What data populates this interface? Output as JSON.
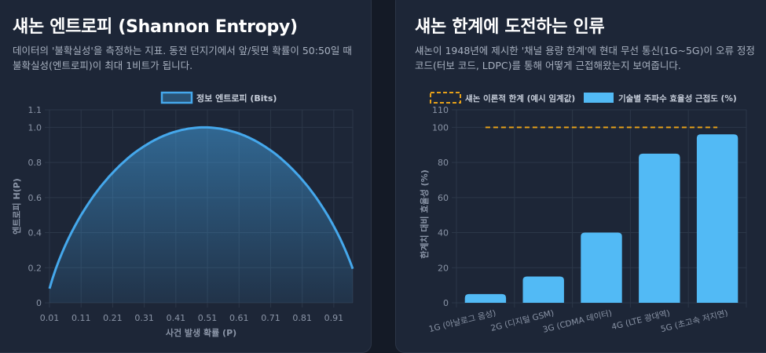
{
  "left_card": {
    "title": "섀논 엔트로피 (Shannon Entropy)",
    "description": "데이터의 '불확실성'을 측정하는 지표. 동전 던지기에서 앞/뒷면 확률이 50:50일 때 불확실성(엔트로피)이 최대 1비트가 됩니다."
  },
  "right_card": {
    "title": "섀논 한계에 도전하는 인류",
    "description": "섀논이 1948년에 제시한 '채널 용량 한계'에 현대 무선 통신(1G~5G)이 오류 정정 코드(터보 코드, LDPC)를 통해 어떻게 근접해왔는지 보여줍니다."
  },
  "colors": {
    "line": "#45a8ec",
    "bar": "#52baf5",
    "limit": "#e6a11a",
    "grid": "#2c3748",
    "tick_text": "#8a94a6"
  },
  "chart_data": [
    {
      "type": "area",
      "series": [
        {
          "name": "정보 엔트로피 (Bits)",
          "x_start": 0.01,
          "x_step": 0.01,
          "values": [
            0.081,
            0.141,
            0.194,
            0.242,
            0.286,
            0.327,
            0.366,
            0.402,
            0.436,
            0.469,
            0.5,
            0.529,
            0.557,
            0.584,
            0.61,
            0.634,
            0.658,
            0.68,
            0.701,
            0.722,
            0.741,
            0.76,
            0.778,
            0.795,
            0.811,
            0.827,
            0.842,
            0.856,
            0.869,
            0.881,
            0.893,
            0.904,
            0.915,
            0.925,
            0.934,
            0.943,
            0.951,
            0.958,
            0.965,
            0.971,
            0.976,
            0.981,
            0.986,
            0.989,
            0.993,
            0.995,
            0.997,
            0.999,
            1,
            1,
            1,
            0.999,
            0.997,
            0.995,
            0.993,
            0.989,
            0.986,
            0.981,
            0.976,
            0.971,
            0.965,
            0.958,
            0.951,
            0.943,
            0.934,
            0.925,
            0.915,
            0.904,
            0.893,
            0.881,
            0.869,
            0.856,
            0.842,
            0.827,
            0.811,
            0.795,
            0.778,
            0.76,
            0.741,
            0.722,
            0.701,
            0.68,
            0.658,
            0.634,
            0.61,
            0.584,
            0.557,
            0.529,
            0.5,
            0.469,
            0.436,
            0.402,
            0.366,
            0.327,
            0.286,
            0.242,
            0.194
          ]
        }
      ],
      "x_tick_labels": [
        "0.01",
        "0.11",
        "0.21",
        "0.31",
        "0.41",
        "0.51",
        "0.61",
        "0.71",
        "0.81",
        "0.91"
      ],
      "y_tick_labels": [
        "0",
        "0.2",
        "0.4",
        "0.6",
        "0.8",
        "1.0",
        "1.1"
      ],
      "xlabel": "사건 발생 확률 (P)",
      "ylabel": "엔트로피 H(P)",
      "ylim": [
        0,
        1.1
      ],
      "grid": true,
      "legend": "top-center"
    },
    {
      "type": "bar",
      "categories": [
        "1G (아날로그 음성)",
        "2G (디지털 GSM)",
        "3G (CDMA 데이터)",
        "4G (LTE 광대역)",
        "5G (초고속 저지연)"
      ],
      "series": [
        {
          "name": "기술별 주파수 효율성 근접도 (%)",
          "values": [
            5,
            15,
            40,
            85,
            96
          ]
        }
      ],
      "reference_line": {
        "name": "섀논 이론적 한계 (예시 임계값)",
        "value": 100
      },
      "y_tick_labels": [
        "0",
        "20",
        "40",
        "60",
        "80",
        "100",
        "110"
      ],
      "xlabel": "",
      "ylabel": "한계치 대비 효율성 (%)",
      "ylim": [
        0,
        110
      ],
      "grid": true,
      "legend": "top-center"
    }
  ]
}
